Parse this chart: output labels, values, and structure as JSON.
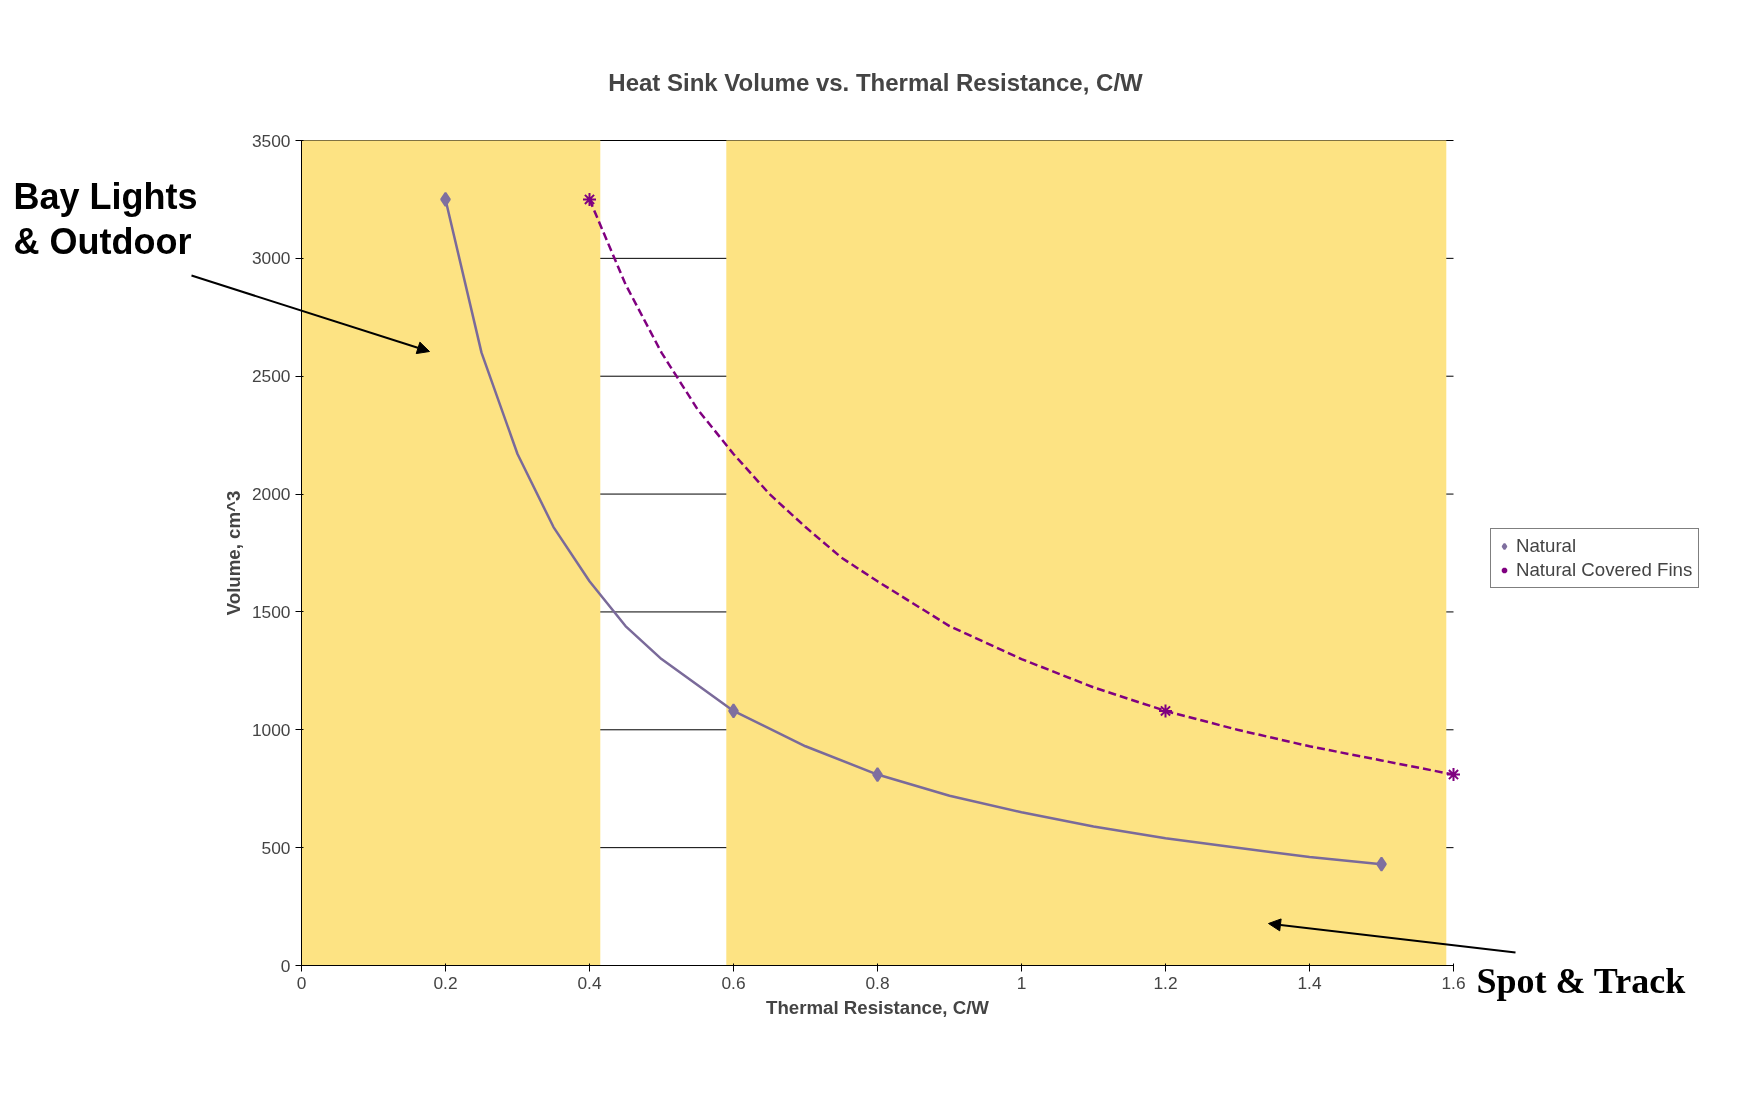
{
  "chart_data": {
    "type": "line",
    "title": "Heat Sink Volume vs. Thermal Resistance, C/W",
    "xlabel": "Thermal Resistance, C/W",
    "ylabel": "Volume, cm^3",
    "xlim": [
      0,
      1.6
    ],
    "xticks": [
      0,
      0.2,
      0.4,
      0.6,
      0.8,
      1,
      1.2,
      1.4,
      1.6
    ],
    "ylim": [
      0,
      3500
    ],
    "yticks": [
      0,
      500,
      1000,
      1500,
      2000,
      2500,
      3000,
      3500
    ],
    "grid": "y",
    "legend": "right",
    "bands": [
      {
        "axis": "x",
        "from": 0,
        "to": 0.415,
        "color": "#fde383"
      },
      {
        "axis": "x",
        "from": 0.59,
        "to": 1.59,
        "color": "#fde383"
      }
    ],
    "series": [
      {
        "color": "#7a6a9a",
        "line_style": "solid",
        "x": [
          0.2,
          0.25,
          0.3,
          0.35,
          0.4,
          0.45,
          0.5,
          0.6,
          0.7,
          0.8,
          0.9,
          1.0,
          1.1,
          1.2,
          1.3,
          1.4,
          1.5
        ],
        "values": [
          3250,
          2600,
          2170,
          1860,
          1630,
          1440,
          1300,
          1080,
          930,
          810,
          720,
          650,
          590,
          540,
          500,
          460,
          430
        ]
      },
      {
        "color": "#800080",
        "line_style": "dashed",
        "x": [
          0.4,
          0.45,
          0.5,
          0.55,
          0.6,
          0.65,
          0.7,
          0.75,
          0.8,
          0.9,
          1.0,
          1.1,
          1.2,
          1.3,
          1.4,
          1.5,
          1.6
        ],
        "values": [
          3250,
          2890,
          2600,
          2360,
          2170,
          2000,
          1860,
          1730,
          1630,
          1440,
          1300,
          1180,
          1080,
          1000,
          930,
          870,
          810
        ]
      },
      {
        "type": "scatter",
        "name": "Natural",
        "color": "#7f6f9f",
        "marker": "diamond",
        "x": [
          0.2,
          0.6,
          0.8,
          1.5
        ],
        "values": [
          3250,
          1080,
          810,
          430
        ]
      },
      {
        "type": "scatter",
        "name": "Natural Covered Fins",
        "color": "#800080",
        "marker": "cross",
        "x": [
          0.4,
          1.2,
          1.6
        ],
        "values": [
          3250,
          1080,
          810
        ]
      }
    ],
    "annotations": [
      "Bay Lights\n& Outdoor",
      "Spot & Track"
    ]
  }
}
